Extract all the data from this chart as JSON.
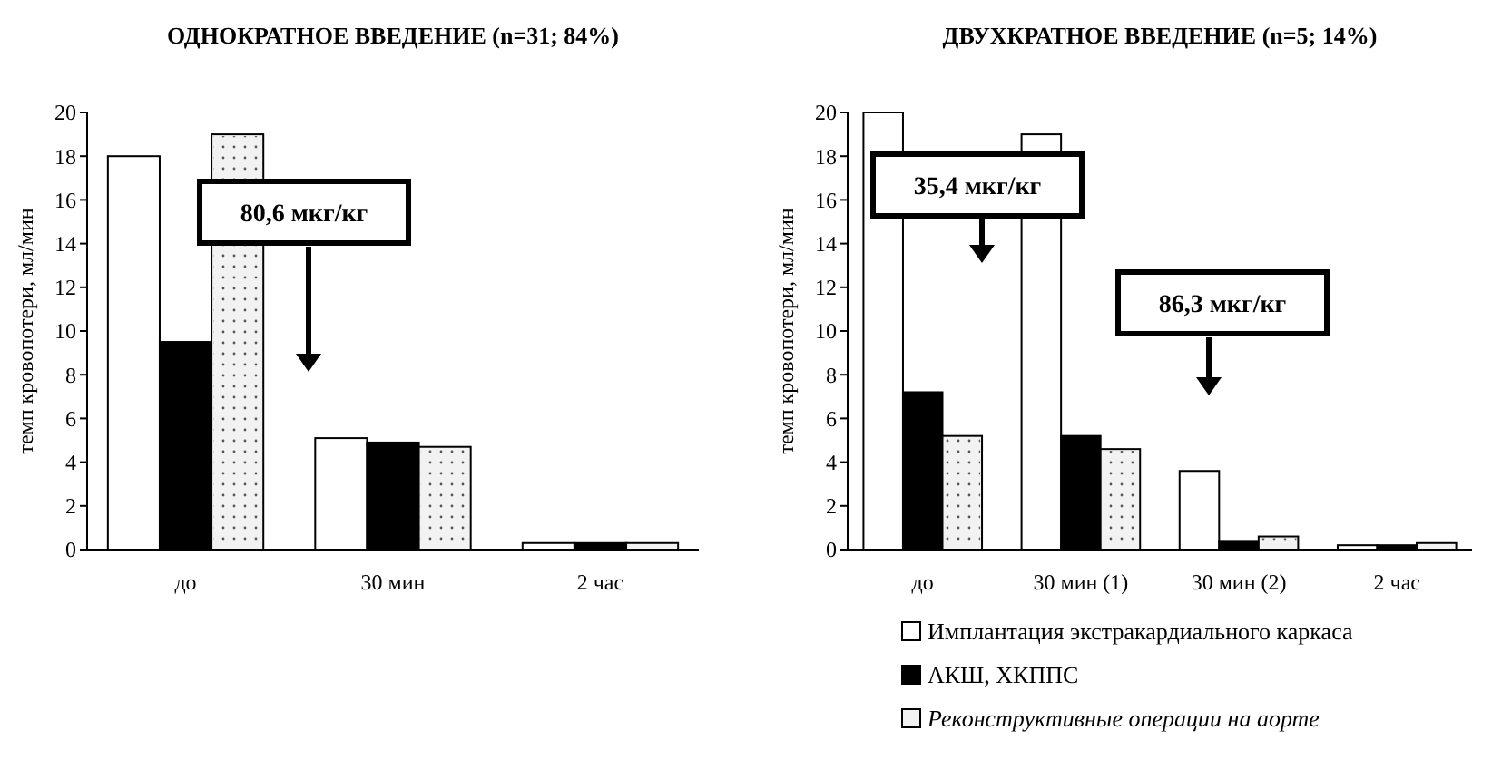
{
  "chart_data": [
    {
      "type": "bar",
      "title": "ОДНОКРАТНОЕ ВВЕДЕНИЕ (n=31; 84%)",
      "ylabel": "темп кровопотери, мл/мин",
      "categories": [
        "до",
        "30 мин",
        "2 час"
      ],
      "series": [
        {
          "color": "#ffffff",
          "values": [
            18,
            5.1,
            0.3
          ]
        },
        {
          "color": "#000000",
          "values": [
            9.5,
            4.9,
            0.3
          ]
        },
        {
          "color": "#f2f2f2",
          "values": [
            19,
            4.7,
            0.3
          ]
        }
      ],
      "ylim": [
        0,
        20
      ],
      "yticks": [
        0,
        2,
        4,
        6,
        8,
        10,
        12,
        14,
        16,
        18,
        20
      ],
      "grid": false,
      "annotations": [
        "80,6 мкг/кг"
      ]
    },
    {
      "type": "bar",
      "title": "ДВУХКРАТНОЕ ВВЕДЕНИЕ (n=5; 14%)",
      "ylabel": "темп кровопотери, мл/мин",
      "categories": [
        "до",
        "30 мин (1)",
        "30 мин (2)",
        "2 час"
      ],
      "series": [
        {
          "name": "Имплантация экстракардиального каркаса",
          "color": "#ffffff",
          "values": [
            20,
            19,
            3.6,
            0.2
          ]
        },
        {
          "name": "АКШ, ХКППС",
          "color": "#000000",
          "values": [
            7.2,
            5.2,
            0.4,
            0.2
          ]
        },
        {
          "name": "Реконструктивные операции на аорте",
          "color": "#f2f2f2",
          "values": [
            5.2,
            4.6,
            0.6,
            0.3
          ]
        }
      ],
      "ylim": [
        0,
        20
      ],
      "yticks": [
        0,
        2,
        4,
        6,
        8,
        10,
        12,
        14,
        16,
        18,
        20
      ],
      "grid": false,
      "legend": "bottom",
      "annotations": [
        "35,4 мкг/кг",
        "86,3 мкг/кг"
      ]
    }
  ]
}
